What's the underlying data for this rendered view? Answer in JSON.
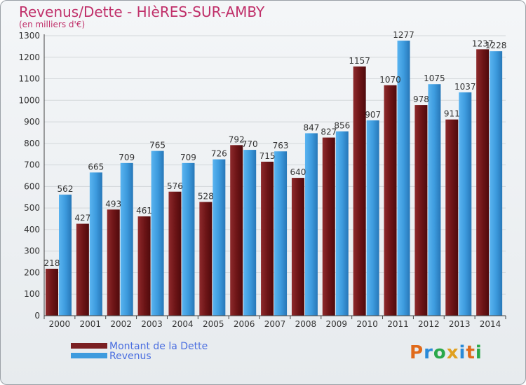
{
  "chart_data": {
    "type": "bar",
    "title": "Revenus/Dette - HIèRES-SUR-AMBY",
    "subtitle": "(en milliers d'€)",
    "categories": [
      "2000",
      "2001",
      "2002",
      "2003",
      "2004",
      "2005",
      "2006",
      "2007",
      "2008",
      "2009",
      "2010",
      "2011",
      "2012",
      "2013",
      "2014"
    ],
    "series": [
      {
        "name": "Montant de la Dette",
        "color": "#7a1f22",
        "values": [
          218,
          427,
          493,
          461,
          576,
          528,
          792,
          715,
          640,
          827,
          1157,
          1070,
          978,
          911,
          1237
        ]
      },
      {
        "name": "Revenus",
        "color": "#3d9bde",
        "values": [
          562,
          665,
          709,
          765,
          709,
          726,
          770,
          763,
          847,
          856,
          907,
          1277,
          1075,
          1037,
          1228
        ]
      }
    ],
    "ylim": [
      0,
      1300
    ],
    "yticks": [
      0,
      100,
      200,
      300,
      400,
      500,
      600,
      700,
      800,
      900,
      1000,
      1100,
      1200,
      1300
    ],
    "xlabel": "",
    "ylabel": "",
    "grid": true,
    "legend_position": "bottom-left"
  },
  "logo": {
    "text": "Proxiti"
  }
}
